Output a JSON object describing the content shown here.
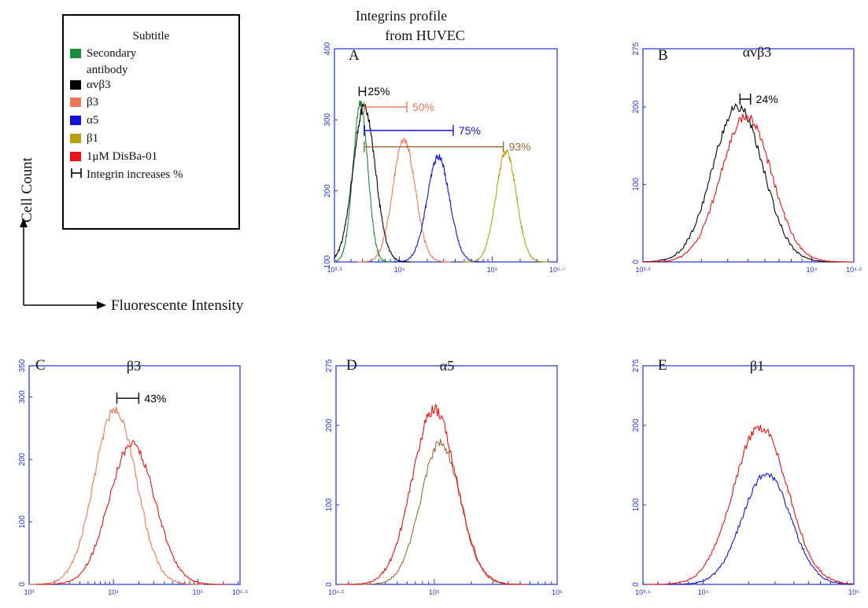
{
  "figure_title": "Integrins profile from HUVEC",
  "figure_title_lines": [
    "Integrins profile",
    "from HUVEC"
  ],
  "axis_labels": {
    "y": "Cell Count",
    "x": "Fluorescente Intensity"
  },
  "legend": {
    "title": "Subtitle",
    "entries": [
      {
        "label": "Secondary antibody",
        "lines": [
          "Secondary",
          "antibody"
        ],
        "color": "#1a8c3a"
      },
      {
        "label": "αvβ3",
        "color": "#000000"
      },
      {
        "label": "β3",
        "color": "#ee7755"
      },
      {
        "label": "α5",
        "color": "#1111dd"
      },
      {
        "label": "β1",
        "color": "#bba010"
      },
      {
        "label": "1μM DisBa-01",
        "color": "#ee1111"
      },
      {
        "label": "Integrin increases %",
        "color": "#000000",
        "marker": "bracket"
      }
    ]
  },
  "chart_data": [
    {
      "type": "line",
      "panel": "A",
      "title": "",
      "xscale": "log",
      "xlim": [
        3.3,
        5.7
      ],
      "ylim": [
        100,
        400
      ],
      "xtick_labels": [
        "10³·³",
        "10⁴",
        "10⁵",
        "10⁵·⁷"
      ],
      "xtick_values": [
        3.3,
        4,
        5,
        5.7
      ],
      "ytick_values": [
        100,
        200,
        300,
        400
      ],
      "series": [
        {
          "name": "Secondary antibody",
          "color": "#1a8c3a",
          "center": 3.58,
          "width": 0.08,
          "peak": 322
        },
        {
          "name": "αvβ3",
          "color": "#000000",
          "center": 3.62,
          "width": 0.12,
          "peak": 318
        },
        {
          "name": "β3",
          "color": "#ee7755",
          "center": 4.05,
          "width": 0.12,
          "peak": 272
        },
        {
          "name": "α5",
          "color": "#1111dd",
          "center": 4.42,
          "width": 0.12,
          "peak": 248
        },
        {
          "name": "β1",
          "color": "#bba010",
          "center": 5.15,
          "width": 0.11,
          "peak": 255
        }
      ],
      "annotations": [
        {
          "text": "25%",
          "color": "#000000",
          "x_start": 3.6,
          "x_end": 3.6,
          "y": 340
        },
        {
          "text": "50%",
          "color": "#ee7755",
          "x_start": 3.62,
          "x_end": 4.08,
          "y": 318
        },
        {
          "text": "75%",
          "color": "#1111dd",
          "x_start": 3.62,
          "x_end": 4.58,
          "y": 285
        },
        {
          "text": "93%",
          "color": "#9b6a3a",
          "x_start": 3.62,
          "x_end": 5.12,
          "y": 262
        }
      ]
    },
    {
      "type": "line",
      "panel": "B",
      "title": "αvβ3",
      "xscale": "log",
      "xlim": [
        3.2,
        4.2
      ],
      "ylim": [
        0,
        275
      ],
      "xtick_labels": [
        "10³·²",
        "10⁴",
        "10⁴·²"
      ],
      "xtick_values": [
        3.2,
        4,
        4.2
      ],
      "ytick_values": [
        0,
        100,
        200,
        275
      ],
      "series": [
        {
          "name": "αvβ3",
          "color": "#000000",
          "center": 3.65,
          "width": 0.12,
          "peak": 200
        },
        {
          "name": "1μM DisBa-01",
          "color": "#ee1111",
          "center": 3.69,
          "width": 0.12,
          "peak": 188
        }
      ],
      "annotations": [
        {
          "text": "24%",
          "color": "#000000",
          "x_start": 3.66,
          "x_end": 3.71,
          "y": 210
        }
      ]
    },
    {
      "type": "line",
      "panel": "C",
      "title": "β3",
      "xscale": "log",
      "xlim": [
        3,
        5.5
      ],
      "ylim": [
        0,
        350
      ],
      "xtick_labels": [
        "10³",
        "10⁴",
        "10⁵",
        "10⁵·⁵"
      ],
      "xtick_values": [
        3,
        4,
        5,
        5.5
      ],
      "ytick_values": [
        0,
        100,
        200,
        300,
        350
      ],
      "series": [
        {
          "name": "β3",
          "color": "#ee7755",
          "center": 4.02,
          "width": 0.25,
          "peak": 280
        },
        {
          "name": "1μM DisBa-01",
          "color": "#ee1111",
          "center": 4.22,
          "width": 0.27,
          "peak": 225
        }
      ],
      "annotations": [
        {
          "text": "43%",
          "color": "#000000",
          "x_start": 4.04,
          "x_end": 4.3,
          "y": 298
        }
      ]
    },
    {
      "type": "line",
      "panel": "D",
      "title": "α5",
      "xscale": "log",
      "xlim": [
        4.2,
        6
      ],
      "ylim": [
        0,
        275
      ],
      "xtick_labels": [
        "10⁴·²",
        "10⁵",
        "10⁶"
      ],
      "xtick_values": [
        4.2,
        5,
        6
      ],
      "ytick_values": [
        0,
        100,
        200,
        275
      ],
      "series": [
        {
          "name": "α5",
          "color": "#9b6a3a",
          "center": 5.05,
          "width": 0.16,
          "peak": 178
        },
        {
          "name": "1μM DisBa-01",
          "color": "#ee1111",
          "center": 5.0,
          "width": 0.18,
          "peak": 220
        }
      ],
      "annotations": []
    },
    {
      "type": "line",
      "panel": "E",
      "title": "β1",
      "xscale": "log",
      "xlim": [
        3.6,
        5
      ],
      "ylim": [
        0,
        275
      ],
      "xtick_labels": [
        "10³·⁶",
        "10⁴",
        "10⁵"
      ],
      "xtick_values": [
        3.6,
        4,
        5
      ],
      "ytick_values": [
        0,
        100,
        200,
        275
      ],
      "series": [
        {
          "name": "β1",
          "color": "#1111dd",
          "center": 4.42,
          "width": 0.16,
          "peak": 140
        },
        {
          "name": "1μM DisBa-01",
          "color": "#ee1111",
          "center": 4.38,
          "width": 0.18,
          "peak": 198
        }
      ],
      "annotations": []
    }
  ]
}
